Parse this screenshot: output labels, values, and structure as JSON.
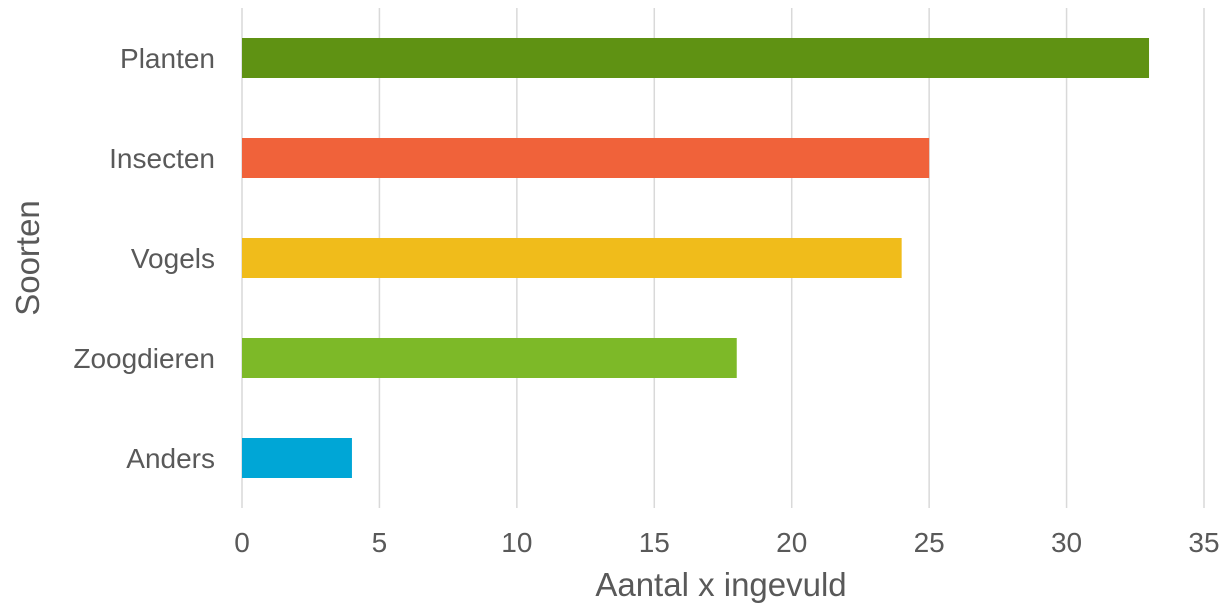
{
  "chart_data": {
    "type": "bar",
    "orientation": "horizontal",
    "categories": [
      "Planten",
      "Insecten",
      "Vogels",
      "Zoogdieren",
      "Anders"
    ],
    "values": [
      33,
      25,
      24,
      18,
      4
    ],
    "colors": [
      "#5f9213",
      "#f0623a",
      "#f0bc1b",
      "#7db928",
      "#00a6d6"
    ],
    "xlabel": "Aantal x ingevuld",
    "ylabel": "Soorten",
    "xlim": [
      0,
      35
    ],
    "xticks": [
      "0",
      "5",
      "10",
      "15",
      "20",
      "25",
      "30",
      "35"
    ],
    "grid": "vertical",
    "legend": "none"
  }
}
